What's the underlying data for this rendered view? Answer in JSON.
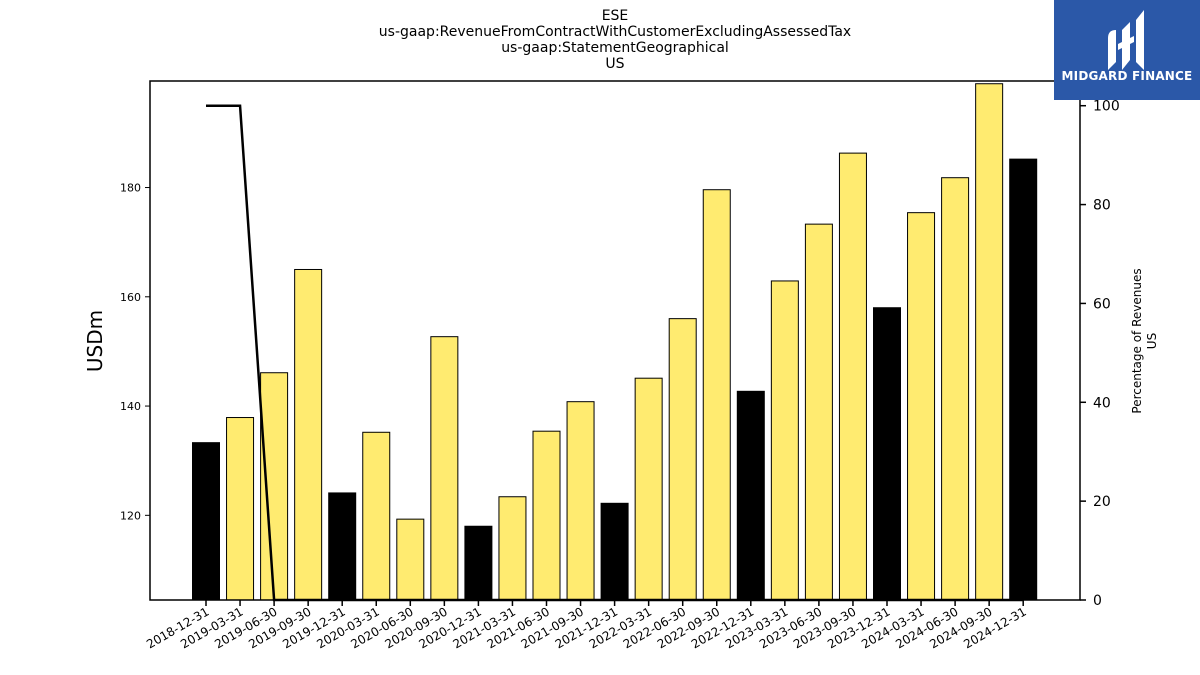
{
  "title_lines": [
    "ESE",
    "us-gaap:RevenueFromContractWithCustomerExcludingAssessedTax",
    "us-gaap:StatementGeographical",
    "US"
  ],
  "logo": {
    "text": "MIDGARD FINANCE",
    "icon": "midgard-logo-icon",
    "bg_color": "#2b58a8"
  },
  "colors": {
    "highlight_bar": "#000000",
    "regular_bar": "#ffeb70",
    "line": "#000000"
  },
  "chart_data": {
    "type": "bar",
    "categories": [
      "2018-12-31",
      "2019-03-31",
      "2019-06-30",
      "2019-09-30",
      "2019-12-31",
      "2020-03-31",
      "2020-06-30",
      "2020-09-30",
      "2020-12-31",
      "2021-03-31",
      "2021-06-30",
      "2021-09-30",
      "2021-12-31",
      "2022-03-31",
      "2022-06-30",
      "2022-09-30",
      "2022-12-31",
      "2023-03-31",
      "2023-06-30",
      "2023-09-30",
      "2023-12-31",
      "2024-03-31",
      "2024-06-30",
      "2024-09-30",
      "2024-12-31"
    ],
    "series": [
      {
        "values": [
          133.3,
          137.9,
          146.1,
          165.0,
          124.1,
          135.2,
          119.3,
          152.7,
          118.0,
          123.4,
          135.4,
          140.8,
          122.2,
          145.1,
          156.0,
          179.6,
          142.7,
          162.9,
          173.3,
          186.3,
          158.0,
          175.4,
          181.8,
          199.0,
          185.2
        ]
      },
      {
        "values": [
          100,
          100,
          0,
          0,
          0,
          0,
          0,
          0,
          0,
          0,
          0,
          0,
          0,
          0,
          0,
          0,
          0,
          0,
          0,
          0,
          0,
          0,
          0,
          0,
          0
        ]
      }
    ],
    "highlight_categories": [
      "2018-12-31",
      "2019-12-31",
      "2020-12-31",
      "2021-12-31",
      "2022-12-31",
      "2023-12-31",
      "2024-12-31"
    ],
    "ylabel": "USDm",
    "y2label": "Percentage of Revenues\nUS",
    "ylim": [
      104.5,
      199.5
    ],
    "y2lim": [
      0,
      105
    ],
    "yticks": [
      120,
      140,
      160,
      180
    ],
    "y2ticks": [
      0,
      20,
      40,
      60,
      80,
      100
    ],
    "grid": false
  }
}
